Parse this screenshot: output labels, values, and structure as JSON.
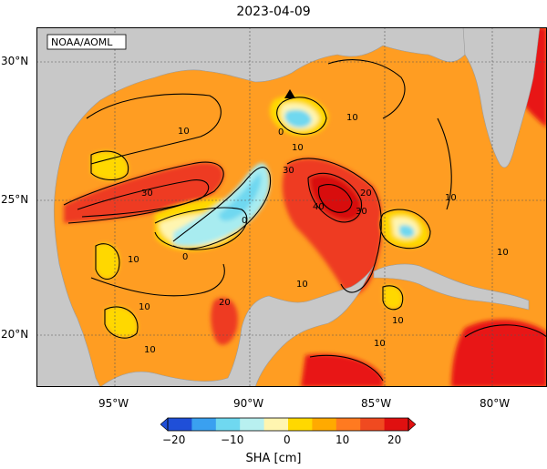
{
  "title": "2023-04-09",
  "watermark": "NOAA/AOML",
  "map": {
    "lat_ticks": [
      "30°N",
      "25°N",
      "20°N"
    ],
    "lon_ticks": [
      "95°W",
      "90°W",
      "85°W",
      "80°W"
    ],
    "contour_labels": [
      "10",
      "10",
      "10",
      "10",
      "10",
      "10",
      "10",
      "10",
      "10",
      "10",
      "10",
      "20",
      "20",
      "30",
      "30",
      "30",
      "40",
      "0",
      "0",
      "0"
    ],
    "marker": "triangle"
  },
  "colorbar": {
    "ticks": [
      "−20",
      "−10",
      "0",
      "10",
      "20"
    ],
    "label": "SHA [cm]",
    "colors": [
      "#1f4fd8",
      "#3aa0f0",
      "#6fd8f0",
      "#b8f0f0",
      "#fff5b0",
      "#ffd800",
      "#ffaa00",
      "#ff7a20",
      "#f04a20",
      "#e01010"
    ]
  },
  "colors": {
    "land": "#c8c8c8",
    "ocean_base": "#ff9d22"
  }
}
